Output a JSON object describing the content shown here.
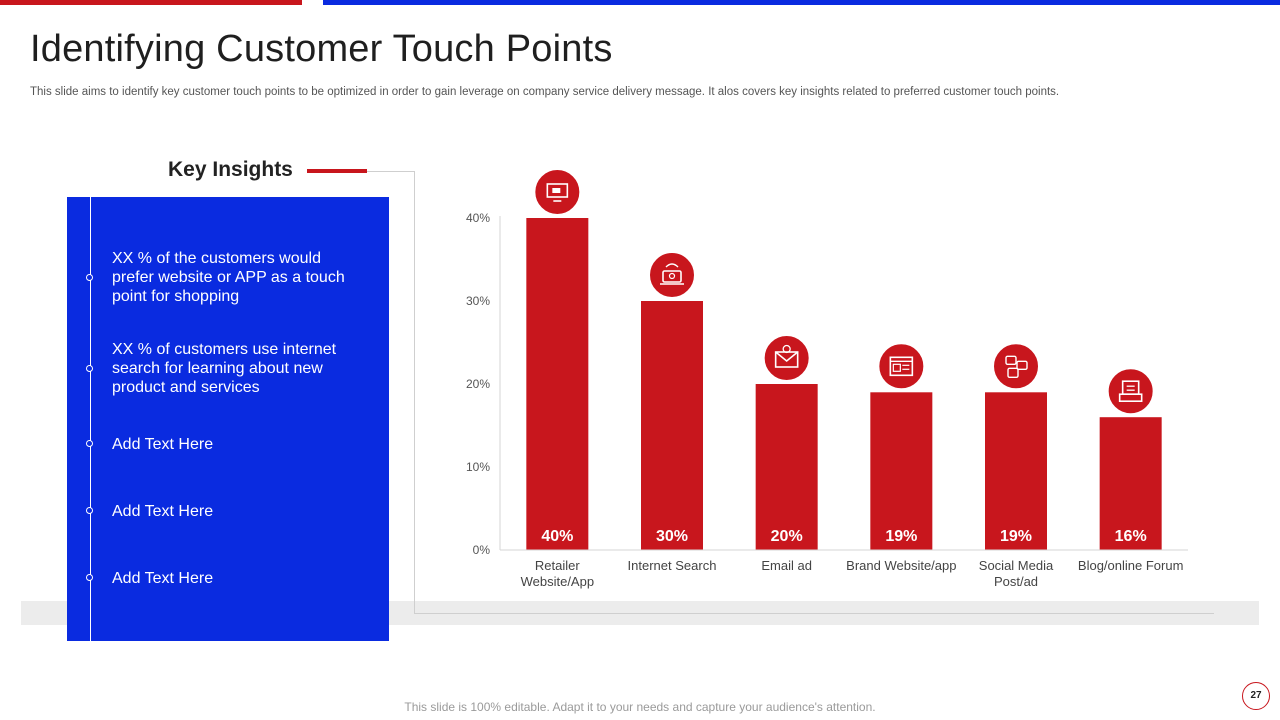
{
  "slide": {
    "title": "Identifying Customer Touch Points",
    "subtitle": "This slide aims to identify key customer touch points to be optimized in order to gain leverage on company service delivery message. It alos covers key insights related to preferred customer touch points.",
    "footer": "This slide is 100% editable. Adapt it to your needs and capture your audience's attention.",
    "page_number": "27"
  },
  "insights": {
    "heading": "Key Insights",
    "items": [
      "XX % of the customers would prefer website or APP as a touch point for shopping",
      "XX % of customers use internet search for learning about new product and services",
      "Add Text Here",
      "Add Text Here",
      "Add Text Here"
    ]
  },
  "colors": {
    "accent_red": "#c8161d",
    "panel_blue": "#0a2be0"
  },
  "chart_data": {
    "type": "bar",
    "title": "",
    "xlabel": "",
    "ylabel": "",
    "ylim": [
      0,
      40
    ],
    "yticks": [
      "0%",
      "10%",
      "20%",
      "30%",
      "40%"
    ],
    "categories": [
      [
        "Retailer",
        "Website/App"
      ],
      [
        "Internet Search"
      ],
      [
        "Email ad"
      ],
      [
        "Brand Website/app"
      ],
      [
        "Social Media",
        "Post/ad"
      ],
      [
        "Blog/online Forum"
      ]
    ],
    "values": [
      40,
      30,
      20,
      19,
      19,
      16
    ],
    "data_labels": [
      "40%",
      "30%",
      "20%",
      "19%",
      "19%",
      "16%"
    ],
    "icons": [
      "monitor-icon",
      "laptop-wifi-icon",
      "email-icon",
      "browser-window-icon",
      "social-chat-icon",
      "blog-forum-icon"
    ],
    "bar_color": "#c8161d"
  }
}
